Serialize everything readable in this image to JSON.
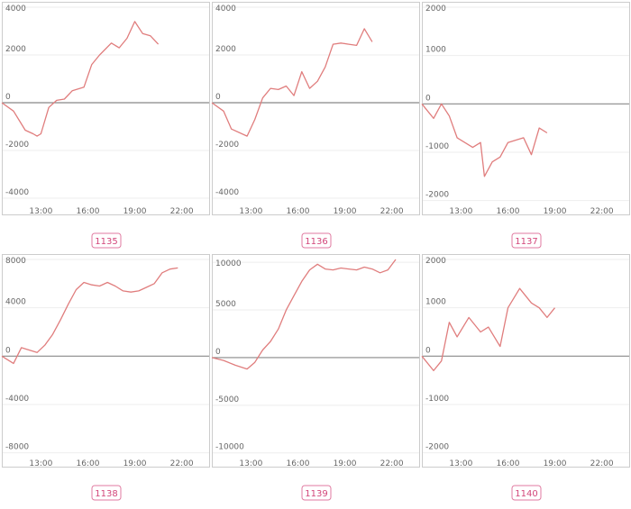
{
  "colors": {
    "line": "#e07d7d",
    "zero_line": "#888888",
    "grid": "#eeeeee",
    "frame": "#cccccc",
    "badge_border": "#e07aa0",
    "badge_text": "#d2467a"
  },
  "chart_data": [
    {
      "type": "line",
      "id": "1135",
      "x_ticks": [
        "13:00",
        "16:00",
        "19:00",
        "22:00"
      ],
      "xlim": [
        "10:30",
        "23:45"
      ],
      "y_ticks": [
        4000,
        2000,
        0,
        -2000,
        -4000
      ],
      "ylim": [
        -4300,
        4000
      ],
      "grid": true,
      "series": [
        {
          "x": [
            "10:30",
            "11:15",
            "12:00",
            "12:30",
            "12:45",
            "13:00",
            "13:30",
            "14:00",
            "14:30",
            "15:00",
            "15:45",
            "16:15",
            "16:45",
            "17:30",
            "18:00",
            "18:30",
            "19:00",
            "19:30",
            "20:00",
            "20:30"
          ],
          "y": [
            0,
            -350,
            -1150,
            -1300,
            -1400,
            -1300,
            -200,
            100,
            150,
            500,
            650,
            1600,
            2000,
            2500,
            2300,
            2700,
            3400,
            2900,
            2800,
            2450
          ]
        }
      ]
    },
    {
      "type": "line",
      "id": "1136",
      "x_ticks": [
        "13:00",
        "16:00",
        "19:00",
        "22:00"
      ],
      "xlim": [
        "10:30",
        "23:45"
      ],
      "y_ticks": [
        4000,
        2000,
        0,
        -2000,
        -4000
      ],
      "ylim": [
        -4300,
        4000
      ],
      "grid": true,
      "series": [
        {
          "x": [
            "10:30",
            "11:15",
            "11:45",
            "12:45",
            "13:15",
            "13:45",
            "14:15",
            "14:45",
            "15:15",
            "15:45",
            "16:15",
            "16:45",
            "17:15",
            "17:45",
            "18:15",
            "18:45",
            "19:15",
            "19:45",
            "20:15",
            "20:45"
          ],
          "y": [
            0,
            -350,
            -1100,
            -1400,
            -700,
            200,
            600,
            550,
            700,
            300,
            1300,
            600,
            900,
            1500,
            2450,
            2500,
            2450,
            2400,
            3100,
            2550
          ]
        }
      ]
    },
    {
      "type": "line",
      "id": "1137",
      "x_ticks": [
        "13:00",
        "16:00",
        "19:00",
        "22:00"
      ],
      "xlim": [
        "10:30",
        "23:45"
      ],
      "y_ticks": [
        2000,
        1000,
        0,
        -1000,
        -2000
      ],
      "ylim": [
        -2100,
        2000
      ],
      "grid": true,
      "series": [
        {
          "x": [
            "10:30",
            "11:15",
            "11:45",
            "12:15",
            "12:45",
            "13:45",
            "14:15",
            "14:30",
            "15:00",
            "15:30",
            "16:00",
            "17:00",
            "17:30",
            "18:00",
            "18:30"
          ],
          "y": [
            0,
            -300,
            0,
            -250,
            -700,
            -900,
            -800,
            -1500,
            -1200,
            -1100,
            -800,
            -700,
            -1050,
            -500,
            -600
          ]
        }
      ]
    },
    {
      "type": "line",
      "id": "1138",
      "x_ticks": [
        "13:00",
        "16:00",
        "19:00",
        "22:00"
      ],
      "xlim": [
        "10:30",
        "23:45"
      ],
      "y_ticks": [
        8000,
        4000,
        0,
        -4000,
        -8000
      ],
      "ylim": [
        -8400,
        8000
      ],
      "grid": true,
      "series": [
        {
          "x": [
            "10:30",
            "11:15",
            "11:45",
            "12:45",
            "13:15",
            "13:45",
            "14:15",
            "14:45",
            "15:15",
            "15:45",
            "16:15",
            "16:45",
            "17:15",
            "17:45",
            "18:15",
            "18:45",
            "19:15",
            "19:45",
            "20:15",
            "20:45",
            "21:15",
            "21:45"
          ],
          "y": [
            0,
            -600,
            700,
            300,
            900,
            1800,
            3000,
            4300,
            5500,
            6100,
            5900,
            5800,
            6100,
            5800,
            5400,
            5300,
            5400,
            5700,
            6000,
            6900,
            7200,
            7300
          ]
        }
      ]
    },
    {
      "type": "line",
      "id": "1139",
      "x_ticks": [
        "13:00",
        "16:00",
        "19:00",
        "22:00"
      ],
      "xlim": [
        "10:30",
        "23:45"
      ],
      "y_ticks": [
        10000,
        5000,
        0,
        -5000,
        -10000
      ],
      "ylim": [
        -10500,
        10300
      ],
      "grid": true,
      "series": [
        {
          "x": [
            "10:30",
            "11:15",
            "12:00",
            "12:45",
            "13:15",
            "13:45",
            "14:15",
            "14:45",
            "15:15",
            "15:45",
            "16:15",
            "16:45",
            "17:15",
            "17:45",
            "18:15",
            "18:45",
            "19:15",
            "19:45",
            "20:15",
            "20:45",
            "21:15",
            "21:45",
            "22:15"
          ],
          "y": [
            0,
            -300,
            -800,
            -1200,
            -500,
            800,
            1700,
            3000,
            5000,
            6500,
            8000,
            9200,
            9800,
            9300,
            9200,
            9400,
            9300,
            9200,
            9500,
            9300,
            8900,
            9200,
            10300
          ]
        }
      ]
    },
    {
      "type": "line",
      "id": "1140",
      "x_ticks": [
        "13:00",
        "16:00",
        "19:00",
        "22:00"
      ],
      "xlim": [
        "10:30",
        "23:45"
      ],
      "y_ticks": [
        2000,
        1000,
        0,
        -1000,
        -2000
      ],
      "ylim": [
        -2100,
        2000
      ],
      "grid": true,
      "series": [
        {
          "x": [
            "10:30",
            "11:15",
            "11:45",
            "12:15",
            "12:45",
            "13:30",
            "14:15",
            "14:45",
            "15:30",
            "16:00",
            "16:45",
            "17:30",
            "18:00",
            "18:30",
            "19:00"
          ],
          "y": [
            0,
            -300,
            -100,
            700,
            400,
            800,
            500,
            600,
            200,
            1000,
            1400,
            1100,
            1000,
            800,
            1000
          ]
        }
      ]
    }
  ]
}
